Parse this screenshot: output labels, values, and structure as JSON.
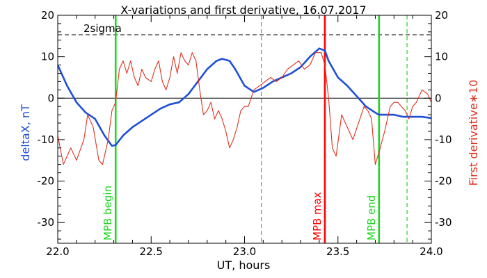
{
  "chart_data": {
    "type": "line",
    "title": "X-variations and first derivative, 16.07.2017",
    "xlabel": "UT, hours",
    "ylabel_left": "deltaX, nT",
    "ylabel_right": "First derivative∗10",
    "xlim": [
      22.0,
      24.0
    ],
    "ylim": [
      -35,
      20
    ],
    "x_ticks": [
      "22.0",
      "22.5",
      "23.0",
      "23.5",
      "24.0"
    ],
    "x_tick_values": [
      22.0,
      22.5,
      23.0,
      23.5,
      24.0
    ],
    "y_ticks_left": [
      "20",
      "10",
      "0",
      "-10",
      "-20",
      "-30"
    ],
    "y_ticks_right": [
      "20",
      "10",
      "0",
      "-10",
      "-20",
      "-30"
    ],
    "y_tick_values": [
      20,
      10,
      0,
      -10,
      -20,
      -30
    ],
    "colors": {
      "deltaX": "#1f4fd6",
      "derivative": "#e0301e",
      "green": "#1fd61f",
      "zero": "#000000",
      "sigma": "#000000"
    },
    "sigma": {
      "label": "2sigma",
      "value": 15.3
    },
    "zero_line": 0,
    "series": [
      {
        "key": "deltaX",
        "axis": "left",
        "x": [
          22.0,
          22.05,
          22.1,
          22.15,
          22.2,
          22.25,
          22.29,
          22.31,
          22.35,
          22.4,
          22.45,
          22.5,
          22.55,
          22.6,
          22.65,
          22.7,
          22.75,
          22.8,
          22.85,
          22.88,
          22.92,
          22.95,
          23.0,
          23.05,
          23.1,
          23.15,
          23.2,
          23.25,
          23.3,
          23.35,
          23.4,
          23.43,
          23.45,
          23.5,
          23.55,
          23.6,
          23.65,
          23.7,
          23.72,
          23.8,
          23.85,
          23.9,
          23.95,
          24.0
        ],
        "y": [
          8,
          3,
          -1,
          -3.5,
          -5,
          -9,
          -11.5,
          -11.3,
          -9,
          -7,
          -5.5,
          -4,
          -2.5,
          -1.5,
          -1,
          1,
          4,
          7,
          9,
          9.5,
          9,
          7,
          3,
          1.5,
          2.5,
          4,
          5,
          6,
          7.5,
          10,
          12,
          11.5,
          9,
          5,
          3,
          0.5,
          -2,
          -3.5,
          -4,
          -4,
          -4.5,
          -4.5,
          -4.5,
          -4.8
        ]
      },
      {
        "key": "derivative",
        "axis": "right",
        "x": [
          22.0,
          22.03,
          22.07,
          22.1,
          22.14,
          22.16,
          22.19,
          22.22,
          22.24,
          22.27,
          22.29,
          22.31,
          22.33,
          22.35,
          22.37,
          22.39,
          22.41,
          22.43,
          22.45,
          22.47,
          22.5,
          22.52,
          22.54,
          22.56,
          22.58,
          22.6,
          22.62,
          22.64,
          22.66,
          22.68,
          22.7,
          22.72,
          22.74,
          22.76,
          22.78,
          22.8,
          22.82,
          22.84,
          22.86,
          22.88,
          22.9,
          22.92,
          22.94,
          22.96,
          22.98,
          23.0,
          23.02,
          23.05,
          23.08,
          23.11,
          23.14,
          23.17,
          23.2,
          23.23,
          23.26,
          23.29,
          23.32,
          23.35,
          23.38,
          23.41,
          23.43,
          23.45,
          23.47,
          23.49,
          23.52,
          23.55,
          23.58,
          23.61,
          23.64,
          23.66,
          23.68,
          23.7,
          23.72,
          23.75,
          23.78,
          23.8,
          23.82,
          23.84,
          23.86,
          23.88,
          23.9,
          23.92,
          23.95,
          23.98,
          24.0
        ],
        "y": [
          -9,
          -16,
          -12,
          -15,
          -10,
          -4,
          -7,
          -15,
          -16,
          -10,
          -3,
          -1,
          7,
          9,
          6,
          9,
          5,
          3,
          7,
          5,
          4,
          7,
          9,
          4,
          2,
          5,
          10,
          6,
          11,
          9,
          8,
          11,
          9,
          2,
          -4,
          -3,
          -1,
          -5,
          -3,
          -5,
          -8,
          -12,
          -10,
          -7,
          -3,
          -2,
          -2,
          2,
          3,
          4,
          5,
          4,
          5,
          7,
          8,
          9,
          7,
          8,
          11,
          11,
          8,
          0,
          -12,
          -14,
          -4,
          -7,
          -10,
          -6,
          -2,
          -3,
          -5,
          -16,
          -13,
          -8,
          -2,
          -1,
          -1,
          -2,
          -3,
          -5,
          -2,
          -1,
          2,
          1,
          -1
        ]
      }
    ],
    "markers": [
      {
        "x": 22.31,
        "label": "MPB begin",
        "style": "solid",
        "color": "green"
      },
      {
        "x": 23.43,
        "label": "MPB max",
        "style": "solid",
        "color": "red"
      },
      {
        "x": 23.72,
        "label": "MPB end",
        "style": "solid",
        "color": "green"
      },
      {
        "x": 23.09,
        "label": "",
        "style": "dashed",
        "color": "green"
      },
      {
        "x": 23.87,
        "label": "",
        "style": "dashed",
        "color": "green"
      }
    ]
  }
}
